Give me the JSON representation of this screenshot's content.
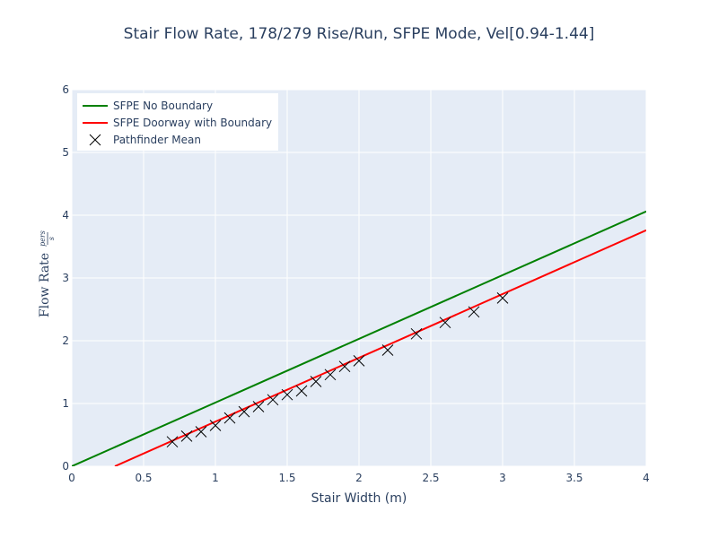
{
  "chart_data": {
    "type": "line",
    "title": "Stair Flow Rate, 178/279 Rise/Run, SFPE Mode, Vel[0.94-1.44]",
    "xlabel": "Stair Width (m)",
    "ylabel": {
      "main": "Flow Rate",
      "numerator": "pers",
      "denominator": "s"
    },
    "xlim": [
      0,
      4
    ],
    "ylim": [
      0,
      6
    ],
    "x_ticks": [
      0,
      0.5,
      1,
      1.5,
      2,
      2.5,
      3,
      3.5,
      4
    ],
    "x_tick_labels": [
      "0",
      "0.5",
      "1",
      "1.5",
      "2",
      "2.5",
      "3",
      "3.5",
      "4"
    ],
    "y_ticks": [
      0,
      1,
      2,
      3,
      4,
      5,
      6
    ],
    "y_tick_labels": [
      "0",
      "1",
      "2",
      "3",
      "4",
      "5",
      "6"
    ],
    "grid": true,
    "legend_position": "top-left",
    "series": [
      {
        "name": "SFPE No Boundary",
        "kind": "line",
        "color": "#008000",
        "x": [
          0,
          4
        ],
        "y": [
          0,
          4.06
        ]
      },
      {
        "name": "SFPE Doorway with Boundary",
        "kind": "line",
        "color": "#ff0000",
        "x": [
          0.3,
          4
        ],
        "y": [
          0,
          3.76
        ]
      },
      {
        "name": "Pathfinder Mean",
        "kind": "marker",
        "marker": "x",
        "color": "#000000",
        "x": [
          0.7,
          0.8,
          0.9,
          1.0,
          1.1,
          1.2,
          1.3,
          1.4,
          1.5,
          1.6,
          1.7,
          1.8,
          1.9,
          2.0,
          2.2,
          2.4,
          2.6,
          2.8,
          3.0
        ],
        "y": [
          0.39,
          0.48,
          0.55,
          0.65,
          0.77,
          0.87,
          0.95,
          1.06,
          1.14,
          1.2,
          1.35,
          1.46,
          1.59,
          1.68,
          1.85,
          2.11,
          2.29,
          2.46,
          2.68
        ]
      }
    ]
  },
  "colors": {
    "plot_bg": "#e5ecf6",
    "grid": "#ffffff",
    "text": "#2a3f5f"
  }
}
